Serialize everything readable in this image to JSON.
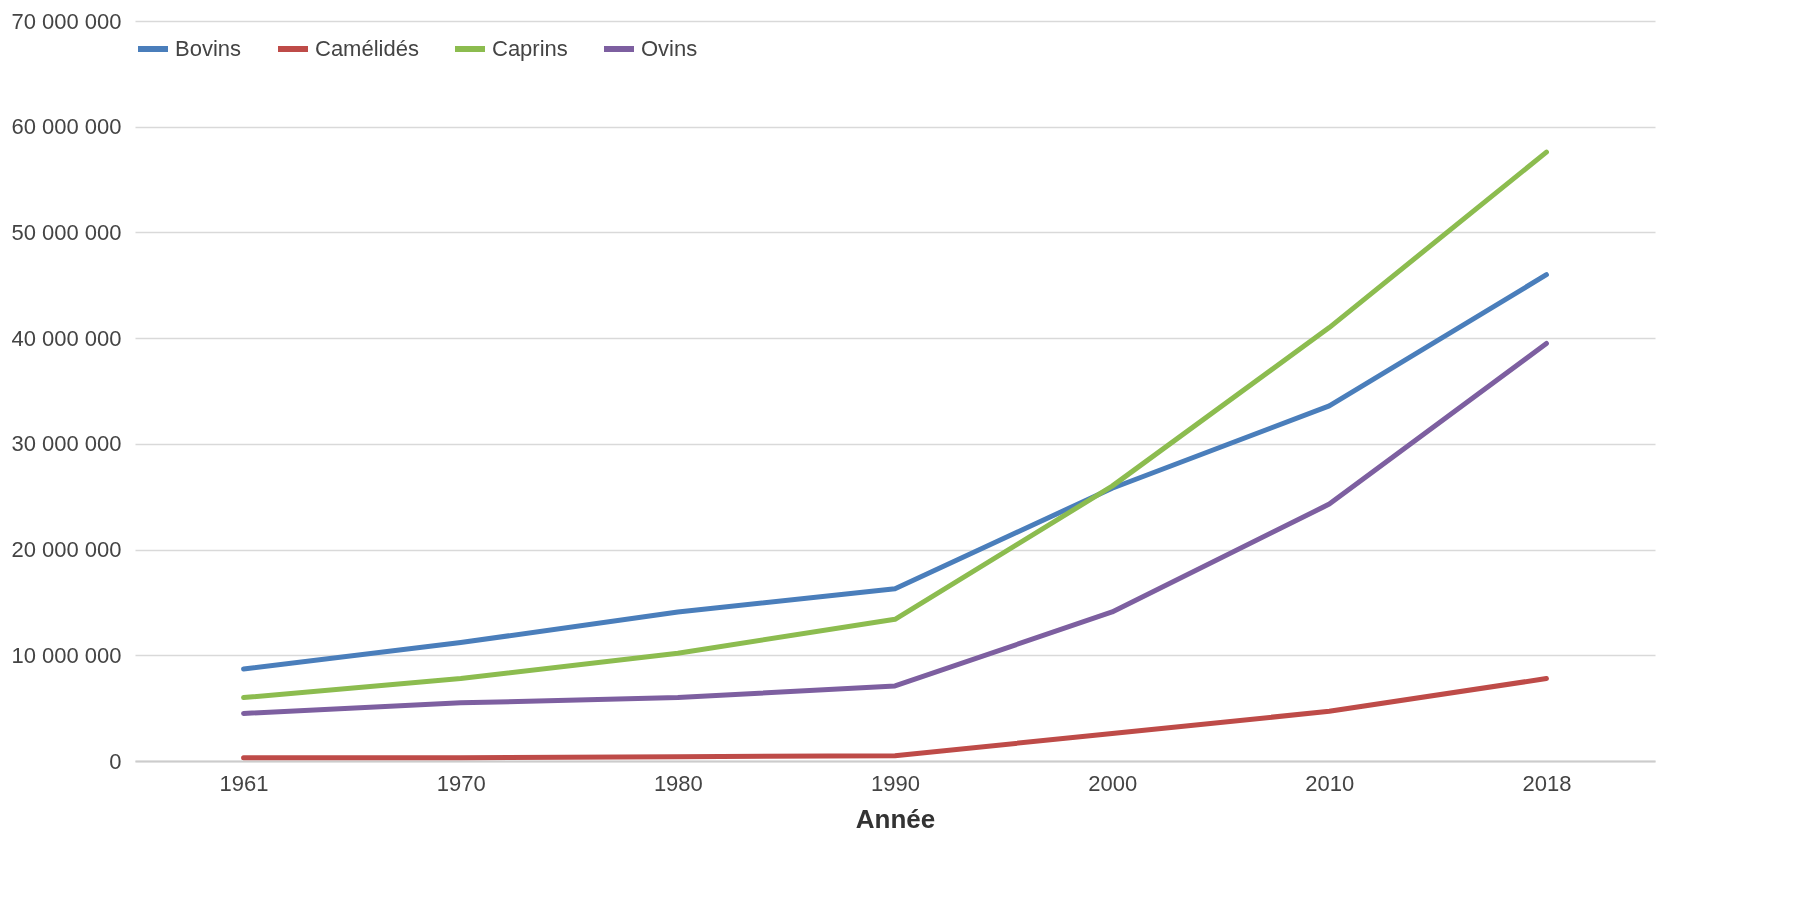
{
  "chart_data": {
    "type": "line",
    "xlabel": "Année",
    "categories": [
      "1961",
      "1970",
      "1980",
      "1990",
      "2000",
      "2010",
      "2018"
    ],
    "series": [
      {
        "name": "Bovins",
        "color": "#4a7ebb",
        "values": [
          8700000,
          11200000,
          14100000,
          16300000,
          25800000,
          33600000,
          46000000
        ]
      },
      {
        "name": "Camélidés",
        "color": "#be4b48",
        "values": [
          300000,
          300000,
          400000,
          500000,
          2600000,
          4700000,
          7800000
        ]
      },
      {
        "name": "Caprins",
        "color": "#8cbc4f",
        "values": [
          6000000,
          7800000,
          10200000,
          13400000,
          26000000,
          41000000,
          57600000
        ]
      },
      {
        "name": "Ovins",
        "color": "#7d5fa0",
        "values": [
          4500000,
          5500000,
          6000000,
          7100000,
          14100000,
          24300000,
          39500000
        ]
      }
    ],
    "ylim": [
      0,
      70000000
    ],
    "yticks": [
      0,
      {
        "value": 10000000,
        "label": "10 000 000"
      },
      {
        "value": 20000000,
        "label": "20 000 000"
      },
      {
        "value": 30000000,
        "label": "30 000 000"
      },
      {
        "value": 40000000,
        "label": "40 000 000"
      },
      {
        "value": 50000000,
        "label": "50 000 000"
      },
      {
        "value": 60000000,
        "label": "60 000 000"
      },
      {
        "value": 70000000,
        "label": "70 000 000"
      }
    ],
    "grid": "y",
    "legend": "top",
    "marker": "none",
    "line_style": "solid"
  }
}
